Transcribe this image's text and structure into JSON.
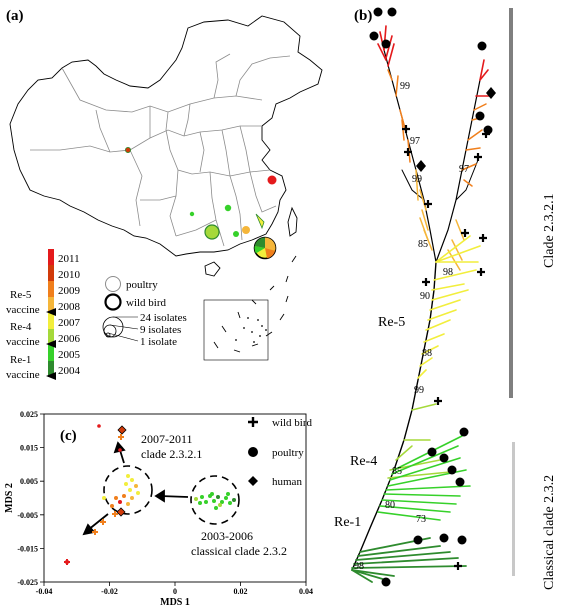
{
  "panels": {
    "a": "(a)",
    "b": "(b)",
    "c": "(c)"
  },
  "colors": {
    "2011": "#e41a1c",
    "2010": "#d13a0a",
    "2009": "#f07f1c",
    "2008": "#f5b63a",
    "2007": "#f2ee3c",
    "2006": "#a5d93a",
    "2005": "#36d12a",
    "2004": "#2e8b2e",
    "tree_black": "#000000",
    "clade_bar": "#7f7f7f",
    "classical_bar": "#c8c8c8",
    "map_line": "#8c8c8c"
  },
  "map_legend": {
    "years": [
      "2011",
      "2010",
      "2009",
      "2008",
      "2007",
      "2006",
      "2005",
      "2004"
    ],
    "vaccines": [
      "Re-5",
      "vaccine",
      "Re-4",
      "vaccine",
      "Re-1",
      "vaccine"
    ],
    "host_legend": [
      "poultry",
      "wild bird"
    ],
    "size_legend": [
      "24 isolates",
      "9 isolates",
      "1 isolate"
    ]
  },
  "tree": {
    "bootstrap": [
      "99",
      "97",
      "99",
      "97",
      "85",
      "98",
      "90",
      "88",
      "99",
      "85",
      "73",
      "80",
      "98"
    ],
    "vaccine_labels": [
      "Re-5",
      "Re-4",
      "Re-1"
    ],
    "clade_labels": [
      "Clade 2.3.2.1",
      "Classical clade 2.3.2"
    ]
  },
  "mds": {
    "xlabel": "MDS 1",
    "ylabel": "MDS 2",
    "xticks": [
      "-0.04",
      "-0.02",
      "0",
      "0.02",
      "0.04"
    ],
    "yticks": [
      "0.025",
      "0.015",
      "0.005",
      "-0.005",
      "-0.015",
      "-0.025"
    ],
    "legend": [
      "wild bird",
      "poultry",
      "human"
    ],
    "annotation_upper": [
      "2007-2011",
      "clade 2.3.2.1"
    ],
    "annotation_lower": [
      "2003-2006",
      "classical clade 2.3.2"
    ]
  }
}
